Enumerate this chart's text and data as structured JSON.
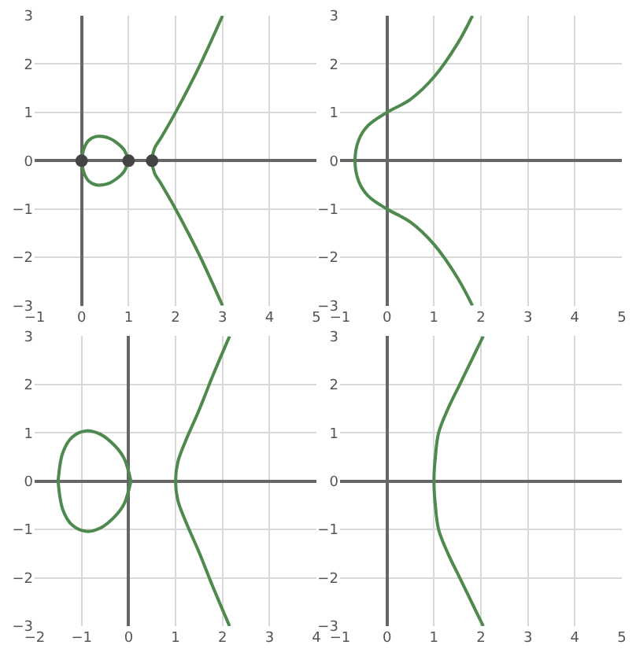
{
  "chart_data": [
    {
      "type": "line",
      "xlim": [
        -1,
        5
      ],
      "ylim": [
        -3,
        3
      ],
      "xticks": [
        -1,
        0,
        1,
        2,
        3,
        4,
        5
      ],
      "yticks": [
        -3,
        -2,
        -1,
        0,
        1,
        2,
        3
      ],
      "grid": true,
      "series": [
        {
          "color": "#4e8a4e",
          "x": [
            0,
            0.05,
            0.15,
            0.3,
            0.45,
            0.6,
            0.75,
            0.9,
            1,
            null,
            1,
            0.9,
            0.75,
            0.6,
            0.45,
            0.3,
            0.15,
            0.05,
            0,
            null,
            3,
            2.5,
            2,
            1.7,
            1.55,
            1.5,
            1.55,
            1.7,
            2,
            2.5,
            3
          ],
          "values": [
            0,
            0.25,
            0.42,
            0.5,
            0.5,
            0.46,
            0.37,
            0.23,
            0,
            null,
            0,
            -0.23,
            -0.37,
            -0.46,
            -0.5,
            -0.5,
            -0.42,
            -0.25,
            0,
            null,
            3,
            1.94,
            1,
            0.49,
            0.25,
            0,
            -0.25,
            -0.49,
            -1,
            -1.94,
            -3
          ]
        },
        {
          "type": "scatter",
          "marker": "circle",
          "color": "#444444",
          "x": [
            0,
            1,
            1.5
          ],
          "values": [
            0,
            0,
            0
          ]
        }
      ]
    },
    {
      "type": "line",
      "xlim": [
        -1,
        5
      ],
      "ylim": [
        -3,
        3
      ],
      "xticks": [
        -1,
        0,
        1,
        2,
        3,
        4,
        5
      ],
      "yticks": [
        -3,
        -2,
        -1,
        0,
        1,
        2,
        3
      ],
      "grid": true,
      "series": [
        {
          "color": "#4e8a4e",
          "x": [
            1.82,
            1.5,
            1,
            0.5,
            0,
            -0.4,
            -0.6,
            -0.68,
            -0.6,
            -0.4,
            0,
            0.5,
            1,
            1.5,
            1.82
          ],
          "values": [
            3,
            2.42,
            1.73,
            1.27,
            1,
            0.73,
            0.43,
            0,
            -0.43,
            -0.73,
            -1,
            -1.27,
            -1.73,
            -2.42,
            -3
          ]
        }
      ]
    },
    {
      "type": "line",
      "xlim": [
        -2,
        4
      ],
      "ylim": [
        -3,
        3
      ],
      "xticks": [
        -2,
        -1,
        0,
        1,
        2,
        3,
        4
      ],
      "yticks": [
        -3,
        -2,
        -1,
        0,
        1,
        2,
        3
      ],
      "grid": true,
      "series": [
        {
          "color": "#4e8a4e",
          "x": [
            -1.5,
            -1.4,
            -1.2,
            -0.9,
            -0.6,
            -0.3,
            -0.1,
            0.05,
            null,
            0.05,
            -0.1,
            -0.3,
            -0.6,
            -0.9,
            -1.2,
            -1.4,
            -1.5,
            null,
            2.15,
            1.8,
            1.5,
            1.2,
            1.05,
            1,
            1.05,
            1.2,
            1.5,
            1.8,
            2.15
          ],
          "values": [
            0,
            0.59,
            0.91,
            1.04,
            0.97,
            0.74,
            0.48,
            0,
            null,
            0,
            -0.48,
            -0.74,
            -0.97,
            -1.04,
            -0.91,
            -0.59,
            0,
            null,
            3,
            2.2,
            1.47,
            0.8,
            0.4,
            0,
            -0.4,
            -0.8,
            -1.47,
            -2.2,
            -3
          ]
        }
      ]
    },
    {
      "type": "line",
      "xlim": [
        -1,
        5
      ],
      "ylim": [
        -3,
        3
      ],
      "xticks": [
        -1,
        0,
        1,
        2,
        3,
        4,
        5
      ],
      "yticks": [
        -3,
        -2,
        -1,
        0,
        1,
        2,
        3
      ],
      "grid": true,
      "series": [
        {
          "color": "#4e8a4e",
          "x": [
            2.05,
            1.8,
            1.55,
            1.3,
            1.1,
            1.03,
            1,
            1.03,
            1.1,
            1.3,
            1.55,
            1.8,
            2.05
          ],
          "values": [
            3,
            2.5,
            2,
            1.5,
            1,
            0.5,
            0,
            -0.5,
            -1,
            -1.5,
            -2,
            -2.5,
            -3
          ]
        }
      ]
    }
  ]
}
